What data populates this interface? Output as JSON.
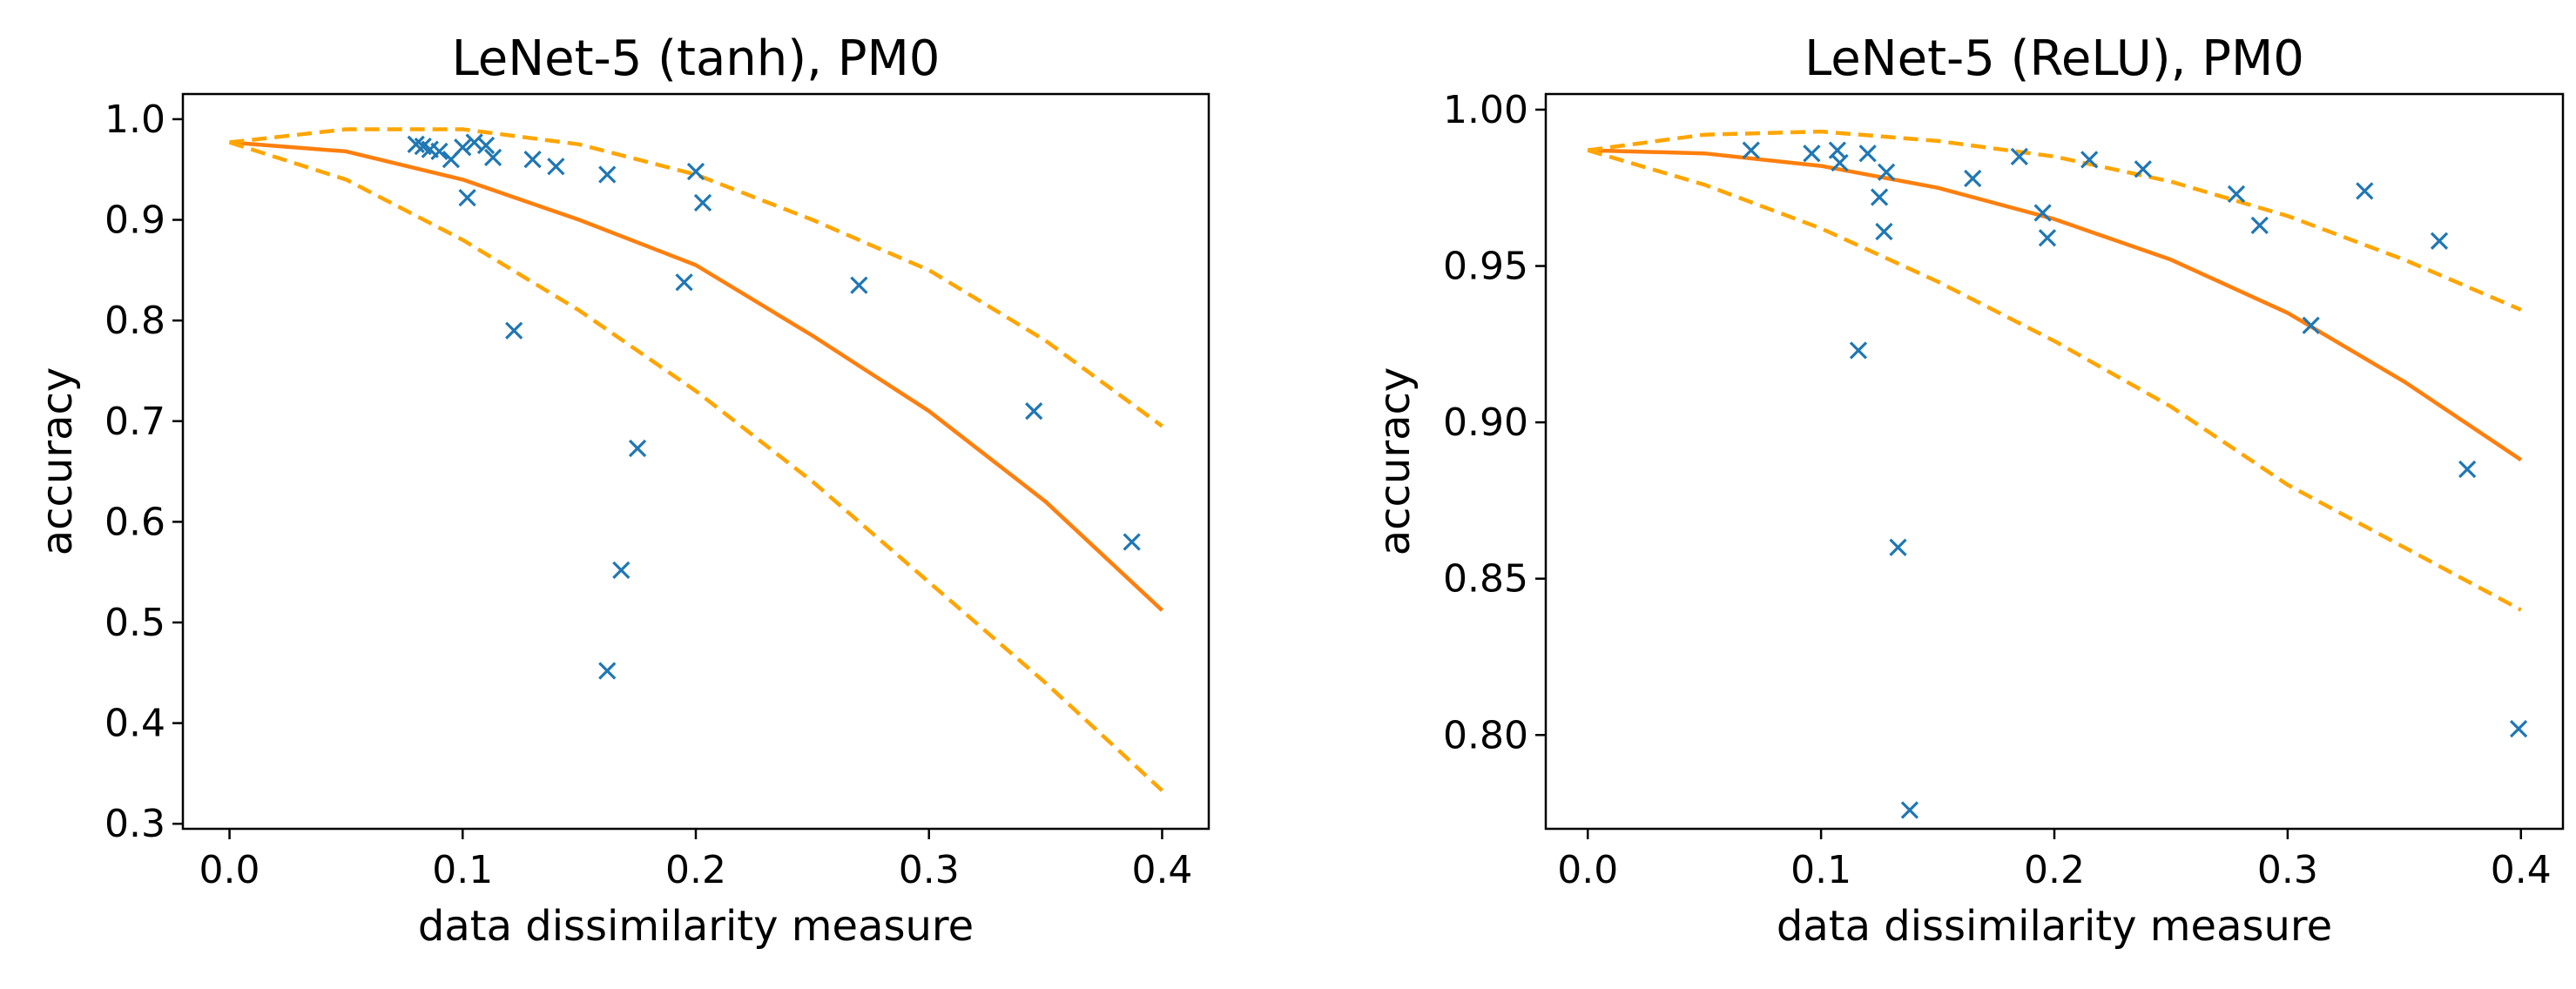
{
  "colors": {
    "marker": "#1f77b4",
    "fit": "#ff7f0e",
    "band": "#ffa500",
    "axis": "#000000"
  },
  "chart_data": [
    {
      "type": "scatter",
      "title": "LeNet-5 (tanh), PM0",
      "xlabel": "data dissimilarity measure",
      "ylabel": "accuracy",
      "xlim": [
        -0.02,
        0.42
      ],
      "ylim": [
        0.295,
        1.025
      ],
      "xticks": [
        0.0,
        0.1,
        0.2,
        0.3,
        0.4
      ],
      "xtick_labels": [
        "0.0",
        "0.1",
        "0.2",
        "0.3",
        "0.4"
      ],
      "yticks": [
        0.3,
        0.4,
        0.5,
        0.6,
        0.7,
        0.8,
        0.9,
        1.0
      ],
      "ytick_labels": [
        "0.3",
        "0.4",
        "0.5",
        "0.6",
        "0.7",
        "0.8",
        "0.9",
        "1.0"
      ],
      "series": [
        {
          "name": "measurements",
          "marker": "x",
          "x": [
            0.08,
            0.083,
            0.086,
            0.09,
            0.095,
            0.1,
            0.105,
            0.11,
            0.113,
            0.13,
            0.14,
            0.102,
            0.122,
            0.162,
            0.2,
            0.203,
            0.195,
            0.27,
            0.175,
            0.168,
            0.162,
            0.345,
            0.387
          ],
          "y": [
            0.975,
            0.973,
            0.97,
            0.968,
            0.96,
            0.972,
            0.977,
            0.974,
            0.962,
            0.96,
            0.953,
            0.922,
            0.79,
            0.945,
            0.948,
            0.917,
            0.838,
            0.835,
            0.673,
            0.552,
            0.452,
            0.71,
            0.58
          ]
        },
        {
          "name": "fit",
          "line": "solid",
          "x": [
            0.0,
            0.05,
            0.1,
            0.15,
            0.2,
            0.25,
            0.3,
            0.35,
            0.4
          ],
          "y": [
            0.977,
            0.968,
            0.94,
            0.9,
            0.855,
            0.785,
            0.71,
            0.62,
            0.512
          ]
        },
        {
          "name": "upper bound",
          "line": "dashed",
          "x": [
            0.0,
            0.05,
            0.1,
            0.15,
            0.2,
            0.25,
            0.3,
            0.35,
            0.4
          ],
          "y": [
            0.977,
            0.99,
            0.99,
            0.975,
            0.945,
            0.9,
            0.85,
            0.78,
            0.695
          ]
        },
        {
          "name": "lower bound",
          "line": "dashed",
          "x": [
            0.0,
            0.05,
            0.1,
            0.15,
            0.2,
            0.25,
            0.3,
            0.35,
            0.4
          ],
          "y": [
            0.977,
            0.94,
            0.88,
            0.81,
            0.73,
            0.64,
            0.54,
            0.44,
            0.333
          ]
        }
      ]
    },
    {
      "type": "scatter",
      "title": "LeNet-5 (ReLU), PM0",
      "xlabel": "data dissimilarity measure",
      "ylabel": "accuracy",
      "xlim": [
        -0.018,
        0.418
      ],
      "ylim": [
        0.77,
        1.005
      ],
      "xticks": [
        0.0,
        0.1,
        0.2,
        0.3,
        0.4
      ],
      "xtick_labels": [
        "0.0",
        "0.1",
        "0.2",
        "0.3",
        "0.4"
      ],
      "yticks": [
        0.8,
        0.85,
        0.9,
        0.95,
        1.0
      ],
      "ytick_labels": [
        "0.80",
        "0.85",
        "0.90",
        "0.95",
        "1.00"
      ],
      "series": [
        {
          "name": "measurements",
          "marker": "x",
          "x": [
            0.07,
            0.096,
            0.107,
            0.108,
            0.12,
            0.125,
            0.128,
            0.127,
            0.165,
            0.185,
            0.215,
            0.238,
            0.195,
            0.197,
            0.278,
            0.288,
            0.333,
            0.365,
            0.31,
            0.116,
            0.133,
            0.138,
            0.377,
            0.399
          ],
          "y": [
            0.987,
            0.986,
            0.987,
            0.983,
            0.986,
            0.972,
            0.98,
            0.961,
            0.978,
            0.985,
            0.984,
            0.981,
            0.967,
            0.959,
            0.973,
            0.963,
            0.974,
            0.958,
            0.931,
            0.923,
            0.86,
            0.776,
            0.885,
            0.802
          ]
        },
        {
          "name": "fit",
          "line": "solid",
          "x": [
            0.0,
            0.05,
            0.1,
            0.15,
            0.2,
            0.25,
            0.3,
            0.35,
            0.4
          ],
          "y": [
            0.987,
            0.986,
            0.982,
            0.975,
            0.965,
            0.952,
            0.935,
            0.913,
            0.888
          ]
        },
        {
          "name": "upper bound",
          "line": "dashed",
          "x": [
            0.0,
            0.05,
            0.1,
            0.15,
            0.2,
            0.25,
            0.3,
            0.35,
            0.4
          ],
          "y": [
            0.987,
            0.992,
            0.993,
            0.99,
            0.985,
            0.977,
            0.966,
            0.952,
            0.936
          ]
        },
        {
          "name": "lower bound",
          "line": "dashed",
          "x": [
            0.0,
            0.05,
            0.1,
            0.15,
            0.2,
            0.25,
            0.3,
            0.35,
            0.4
          ],
          "y": [
            0.987,
            0.976,
            0.962,
            0.945,
            0.926,
            0.905,
            0.88,
            0.86,
            0.84
          ]
        }
      ]
    }
  ]
}
